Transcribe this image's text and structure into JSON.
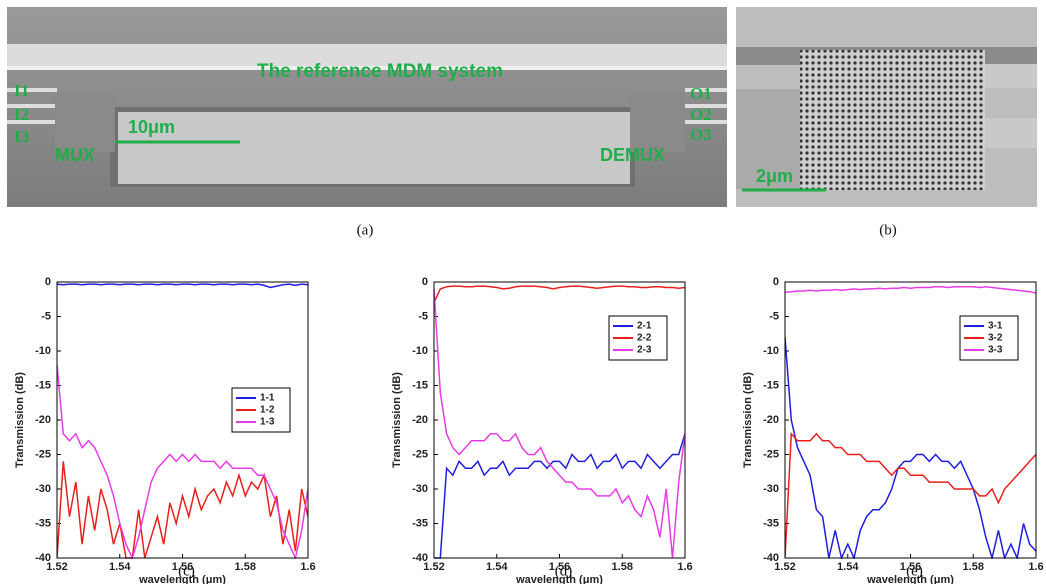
{
  "panels": [
    {
      "caption": "(a)",
      "labels": [
        "The reference MDM system",
        "I1",
        "I2",
        "I3",
        "O1",
        "O2",
        "O3",
        "MUX",
        "DEMUX",
        "10μm"
      ]
    },
    {
      "caption": "(b)",
      "labels": [
        "2μm"
      ]
    }
  ],
  "chart_data": [
    {
      "type": "line",
      "caption": "(c)",
      "xlabel": "wavelength (μm)",
      "ylabel": "Transmission (dB)",
      "xlim": [
        1.52,
        1.6
      ],
      "ylim": [
        -40,
        0
      ],
      "xticks": [
        1.52,
        1.54,
        1.56,
        1.58,
        1.6
      ],
      "yticks": [
        -40,
        -35,
        -30,
        -25,
        -20,
        -15,
        -10,
        -5,
        0
      ],
      "legend": "center right",
      "x": [
        1.52,
        1.522,
        1.524,
        1.526,
        1.528,
        1.53,
        1.532,
        1.534,
        1.536,
        1.538,
        1.54,
        1.542,
        1.544,
        1.546,
        1.548,
        1.55,
        1.552,
        1.554,
        1.556,
        1.558,
        1.56,
        1.562,
        1.564,
        1.566,
        1.568,
        1.57,
        1.572,
        1.574,
        1.576,
        1.578,
        1.58,
        1.582,
        1.584,
        1.586,
        1.588,
        1.59,
        1.592,
        1.594,
        1.596,
        1.598,
        1.6
      ],
      "series": [
        {
          "name": "1-1",
          "color": "#1f1fe0",
          "values": [
            -0.3,
            -0.4,
            -0.3,
            -0.3,
            -0.4,
            -0.3,
            -0.3,
            -0.4,
            -0.3,
            -0.3,
            -0.4,
            -0.3,
            -0.3,
            -0.4,
            -0.3,
            -0.3,
            -0.4,
            -0.3,
            -0.3,
            -0.4,
            -0.3,
            -0.3,
            -0.4,
            -0.3,
            -0.3,
            -0.4,
            -0.3,
            -0.3,
            -0.4,
            -0.3,
            -0.3,
            -0.4,
            -0.3,
            -0.5,
            -0.8,
            -0.6,
            -0.4,
            -0.3,
            -0.5,
            -0.3,
            -0.4
          ]
        },
        {
          "name": "1-2",
          "color": "#e8201c",
          "values": [
            -40,
            -26,
            -34,
            -29,
            -38,
            -31,
            -36,
            -30,
            -33,
            -38,
            -35,
            -40,
            -40,
            -33,
            -40,
            -37,
            -34,
            -38,
            -32,
            -35,
            -31,
            -34,
            -30,
            -33,
            -31,
            -30,
            -32,
            -29,
            -31,
            -28,
            -31,
            -29,
            -30,
            -28,
            -34,
            -31,
            -38,
            -33,
            -39,
            -30,
            -34
          ]
        },
        {
          "name": "1-3",
          "color": "#e83ce8",
          "values": [
            -12,
            -22,
            -23,
            -22,
            -24,
            -23,
            -24,
            -26,
            -28,
            -31,
            -35,
            -38,
            -40,
            -37,
            -33,
            -29,
            -27,
            -26,
            -25,
            -26,
            -25,
            -26,
            -25,
            -26,
            -26,
            -26,
            -27,
            -26,
            -27,
            -27,
            -27,
            -27,
            -28,
            -28,
            -30,
            -32,
            -36,
            -38,
            -40,
            -36,
            -30
          ]
        }
      ]
    },
    {
      "type": "line",
      "caption": "(d)",
      "xlabel": "wavelength (μm)",
      "ylabel": "Transmission (dB)",
      "xlim": [
        1.52,
        1.6
      ],
      "ylim": [
        -40,
        0
      ],
      "xticks": [
        1.52,
        1.54,
        1.56,
        1.58,
        1.6
      ],
      "yticks": [
        -40,
        -35,
        -30,
        -25,
        -20,
        -15,
        -10,
        -5,
        0
      ],
      "legend": "upper right",
      "x": [
        1.52,
        1.522,
        1.524,
        1.526,
        1.528,
        1.53,
        1.532,
        1.534,
        1.536,
        1.538,
        1.54,
        1.542,
        1.544,
        1.546,
        1.548,
        1.55,
        1.552,
        1.554,
        1.556,
        1.558,
        1.56,
        1.562,
        1.564,
        1.566,
        1.568,
        1.57,
        1.572,
        1.574,
        1.576,
        1.578,
        1.58,
        1.582,
        1.584,
        1.586,
        1.588,
        1.59,
        1.592,
        1.594,
        1.596,
        1.598,
        1.6
      ],
      "series": [
        {
          "name": "2-1",
          "color": "#1f1fe0",
          "values": [
            -40,
            -40,
            -27,
            -28,
            -26,
            -27,
            -27,
            -26,
            -28,
            -27,
            -27,
            -26,
            -28,
            -27,
            -27,
            -27,
            -26,
            -26,
            -27,
            -26,
            -26,
            -27,
            -25,
            -26,
            -26,
            -25,
            -27,
            -26,
            -26,
            -25,
            -27,
            -26,
            -26,
            -27,
            -25,
            -26,
            -27,
            -26,
            -25,
            -25,
            -22
          ]
        },
        {
          "name": "2-2",
          "color": "#e8201c",
          "values": [
            -3,
            -1,
            -0.7,
            -0.6,
            -0.6,
            -0.7,
            -0.7,
            -0.6,
            -0.6,
            -0.7,
            -0.8,
            -1,
            -0.9,
            -0.7,
            -0.6,
            -0.6,
            -0.6,
            -0.7,
            -0.8,
            -1,
            -0.8,
            -0.7,
            -0.6,
            -0.6,
            -0.7,
            -0.8,
            -0.9,
            -0.8,
            -0.7,
            -0.6,
            -0.6,
            -0.7,
            -0.7,
            -0.8,
            -0.8,
            -0.7,
            -0.7,
            -0.8,
            -0.8,
            -0.9,
            -0.8
          ]
        },
        {
          "name": "2-3",
          "color": "#e83ce8",
          "values": [
            -1,
            -16,
            -22,
            -24,
            -25,
            -24,
            -23,
            -23,
            -23,
            -22,
            -22,
            -23,
            -23,
            -22,
            -24,
            -25,
            -25,
            -24,
            -26,
            -27,
            -28,
            -29,
            -29,
            -30,
            -30,
            -30,
            -31,
            -31,
            -31,
            -30,
            -32,
            -31,
            -33,
            -34,
            -31,
            -33,
            -37,
            -30,
            -40,
            -29,
            -22
          ]
        }
      ]
    },
    {
      "type": "line",
      "caption": "(e)",
      "xlabel": "wavelength (μm)",
      "ylabel": "Transmission (dB)",
      "xlim": [
        1.52,
        1.6
      ],
      "ylim": [
        -40,
        0
      ],
      "xticks": [
        1.52,
        1.54,
        1.56,
        1.58,
        1.6
      ],
      "yticks": [
        -40,
        -35,
        -30,
        -25,
        -20,
        -15,
        -10,
        -5,
        0
      ],
      "legend": "upper right",
      "x": [
        1.52,
        1.522,
        1.524,
        1.526,
        1.528,
        1.53,
        1.532,
        1.534,
        1.536,
        1.538,
        1.54,
        1.542,
        1.544,
        1.546,
        1.548,
        1.55,
        1.552,
        1.554,
        1.556,
        1.558,
        1.56,
        1.562,
        1.564,
        1.566,
        1.568,
        1.57,
        1.572,
        1.574,
        1.576,
        1.578,
        1.58,
        1.582,
        1.584,
        1.586,
        1.588,
        1.59,
        1.592,
        1.594,
        1.596,
        1.598,
        1.6
      ],
      "series": [
        {
          "name": "3-1",
          "color": "#1f1fe0",
          "values": [
            -8,
            -20,
            -24,
            -26,
            -28,
            -33,
            -34,
            -40,
            -36,
            -40,
            -38,
            -40,
            -36,
            -34,
            -33,
            -33,
            -32,
            -30,
            -27,
            -26,
            -26,
            -25,
            -25,
            -26,
            -25,
            -26,
            -26,
            -27,
            -26,
            -28,
            -30,
            -33,
            -37,
            -40,
            -36,
            -40,
            -38,
            -40,
            -35,
            -38,
            -39
          ]
        },
        {
          "name": "3-2",
          "color": "#e8201c",
          "values": [
            -40,
            -22,
            -23,
            -23,
            -23,
            -22,
            -23,
            -23,
            -24,
            -24,
            -25,
            -25,
            -25,
            -26,
            -26,
            -26,
            -27,
            -28,
            -27,
            -27,
            -28,
            -28,
            -28,
            -29,
            -29,
            -29,
            -29,
            -30,
            -30,
            -30,
            -30,
            -31,
            -31,
            -30,
            -32,
            -30,
            -29,
            -28,
            -27,
            -26,
            -25
          ]
        },
        {
          "name": "3-3",
          "color": "#e83ce8",
          "values": [
            -1.5,
            -1.4,
            -1.3,
            -1.3,
            -1.2,
            -1.3,
            -1.2,
            -1.2,
            -1.1,
            -1.2,
            -1.1,
            -1,
            -1.1,
            -1,
            -1,
            -0.9,
            -1,
            -0.9,
            -0.9,
            -0.8,
            -0.9,
            -0.8,
            -0.8,
            -0.8,
            -0.7,
            -0.7,
            -0.8,
            -0.7,
            -0.7,
            -0.7,
            -0.7,
            -0.8,
            -0.7,
            -0.8,
            -0.9,
            -1,
            -1.1,
            -1.2,
            -1.3,
            -1.4,
            -1.6
          ]
        }
      ]
    }
  ]
}
